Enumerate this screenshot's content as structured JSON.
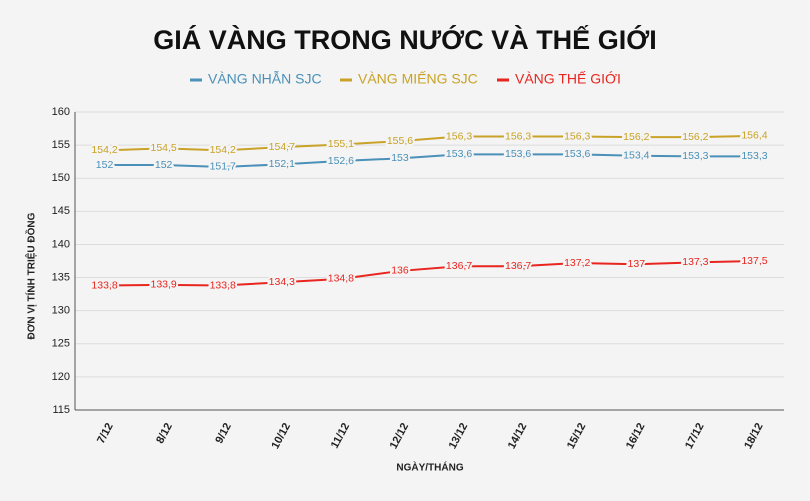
{
  "chart_data": {
    "type": "line",
    "title": "GIÁ VÀNG TRONG NƯỚC VÀ THẾ GIỚI",
    "y_label": "ĐƠN VỊ TÍNH TRIỆU ĐỒNG",
    "x_label": "NGÀY/THÁNG",
    "categories": [
      "7/12",
      "8/12",
      "9/12",
      "10/12",
      "11/12",
      "12/12",
      "13/12",
      "14/12",
      "15/12",
      "16/12",
      "17/12",
      "18/12"
    ],
    "series": [
      {
        "name": "VÀNG NHẪN SJC",
        "color": "#4a90b8",
        "values": [
          152,
          152,
          151.7,
          152.1,
          152.6,
          153,
          153.6,
          153.6,
          153.6,
          153.4,
          153.3,
          153.3
        ],
        "value_labels": [
          "152",
          "152",
          "151,7",
          "152,1",
          "152,6",
          "153",
          "153,6",
          "153,6",
          "153,6",
          "153,4",
          "153,3",
          "153,3"
        ]
      },
      {
        "name": "VÀNG MIẾNG SJC",
        "color": "#c9a227",
        "values": [
          154.2,
          154.5,
          154.2,
          154.7,
          155.1,
          155.6,
          156.3,
          156.3,
          156.3,
          156.2,
          156.2,
          156.4
        ],
        "value_labels": [
          "154,2",
          "154,5",
          "154,2",
          "154,7",
          "155,1",
          "155,6",
          "156,3",
          "156,3",
          "156,3",
          "156,2",
          "156,2",
          "156,4"
        ]
      },
      {
        "name": "VÀNG THẾ GIỚI",
        "color": "#e8251f",
        "values": [
          133.8,
          133.9,
          133.8,
          134.3,
          134.8,
          136,
          136.7,
          136.7,
          137.2,
          137,
          137.3,
          137.5
        ],
        "value_labels": [
          "133,8",
          "133,9",
          "133,8",
          "134,3",
          "134,8",
          "136",
          "136,7",
          "136,7",
          "137,2",
          "137",
          "137,3",
          "137,5"
        ]
      }
    ],
    "ylim": [
      115,
      160
    ],
    "yticks": [
      115,
      120,
      125,
      130,
      135,
      140,
      145,
      150,
      155,
      160
    ],
    "grid": true
  }
}
